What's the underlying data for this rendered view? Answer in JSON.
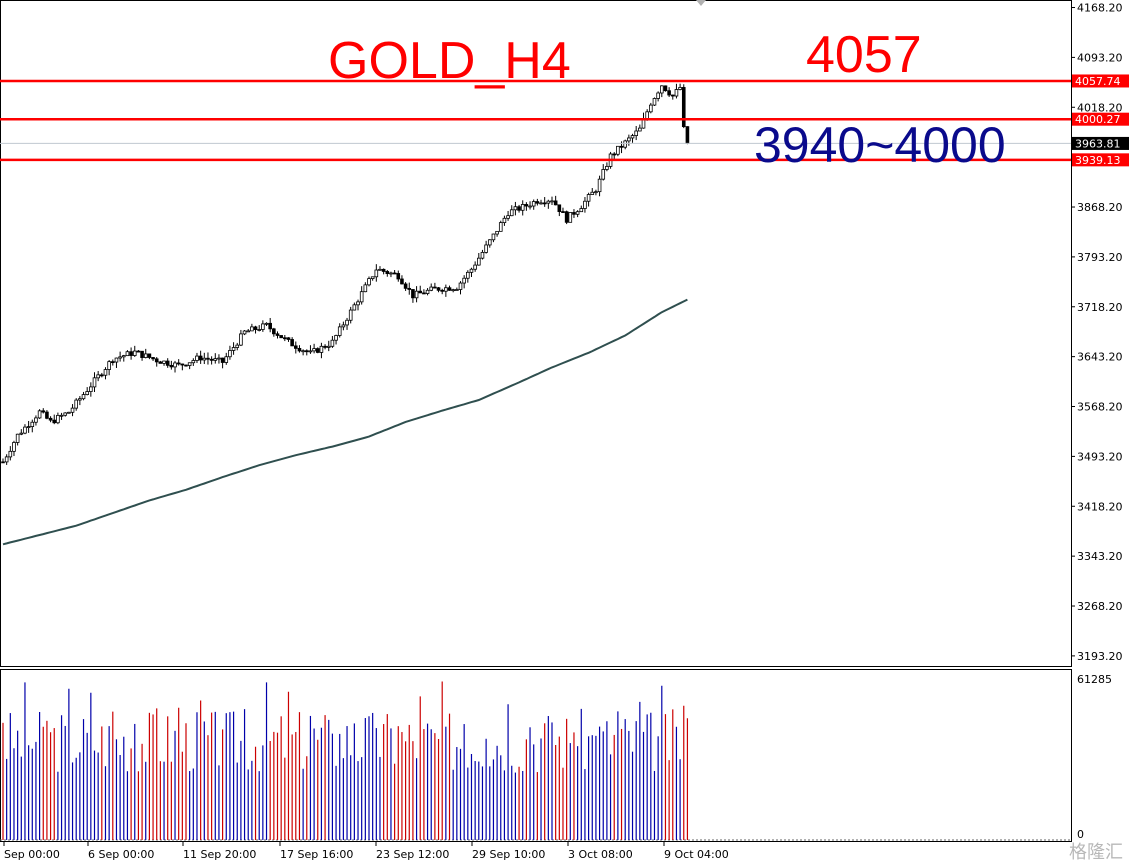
{
  "chart_data": {
    "type": "candlestick",
    "title": "GOLD_H4",
    "annotations": [
      "4057",
      "3940~4000"
    ],
    "price_axis": {
      "ticks": [
        4168.2,
        4093.2,
        4018.2,
        3868.2,
        3793.2,
        3718.2,
        3643.2,
        3568.2,
        3493.2,
        3418.2,
        3343.2,
        3268.2,
        3193.2
      ],
      "tick_labels": [
        "4168.20",
        "4093.20",
        "4018.20",
        "3868.20",
        "3793.20",
        "3718.20",
        "3643.20",
        "3568.20",
        "3493.20",
        "3418.20",
        "3343.20",
        "3268.20",
        "3193.20"
      ],
      "range": [
        3178,
        4178
      ]
    },
    "time_axis": {
      "labels": [
        "Sep 00:00",
        "6 Sep 00:00",
        "11 Sep 20:00",
        "17 Sep 16:00",
        "23 Sep 12:00",
        "29 Sep 10:00",
        "3 Oct 08:00",
        "9 Oct 04:00"
      ]
    },
    "horizontal_lines": [
      {
        "value": 4057.74,
        "label": "4057.74",
        "color": "#ff0000"
      },
      {
        "value": 4000.27,
        "label": "4000.27",
        "color": "#ff0000"
      },
      {
        "value": 3939.13,
        "label": "3939.13",
        "color": "#ff0000"
      }
    ],
    "current_price": {
      "value": 3963.81,
      "label": "3963.81"
    },
    "moving_average": {
      "color": "#2f4f4f",
      "points": [
        {
          "i": 0,
          "v": 3361
        },
        {
          "i": 10,
          "v": 3375
        },
        {
          "i": 20,
          "v": 3389
        },
        {
          "i": 30,
          "v": 3408
        },
        {
          "i": 40,
          "v": 3427
        },
        {
          "i": 50,
          "v": 3443
        },
        {
          "i": 60,
          "v": 3462
        },
        {
          "i": 70,
          "v": 3480
        },
        {
          "i": 80,
          "v": 3495
        },
        {
          "i": 90,
          "v": 3508
        },
        {
          "i": 100,
          "v": 3523
        },
        {
          "i": 110,
          "v": 3545
        },
        {
          "i": 120,
          "v": 3562
        },
        {
          "i": 130,
          "v": 3578
        },
        {
          "i": 140,
          "v": 3602
        },
        {
          "i": 150,
          "v": 3627
        },
        {
          "i": 160,
          "v": 3649
        },
        {
          "i": 170,
          "v": 3675
        },
        {
          "i": 180,
          "v": 3710
        },
        {
          "i": 187,
          "v": 3729
        }
      ]
    },
    "close_path": [
      {
        "i": 0,
        "v": 3485
      },
      {
        "i": 4,
        "v": 3525
      },
      {
        "i": 10,
        "v": 3560
      },
      {
        "i": 13,
        "v": 3545
      },
      {
        "i": 18,
        "v": 3560
      },
      {
        "i": 24,
        "v": 3600
      },
      {
        "i": 30,
        "v": 3640
      },
      {
        "i": 36,
        "v": 3650
      },
      {
        "i": 42,
        "v": 3638
      },
      {
        "i": 48,
        "v": 3630
      },
      {
        "i": 54,
        "v": 3642
      },
      {
        "i": 60,
        "v": 3635
      },
      {
        "i": 66,
        "v": 3680
      },
      {
        "i": 72,
        "v": 3690
      },
      {
        "i": 78,
        "v": 3665
      },
      {
        "i": 84,
        "v": 3648
      },
      {
        "i": 90,
        "v": 3665
      },
      {
        "i": 96,
        "v": 3720
      },
      {
        "i": 102,
        "v": 3775
      },
      {
        "i": 108,
        "v": 3765
      },
      {
        "i": 112,
        "v": 3735
      },
      {
        "i": 118,
        "v": 3745
      },
      {
        "i": 124,
        "v": 3748
      },
      {
        "i": 128,
        "v": 3775
      },
      {
        "i": 134,
        "v": 3825
      },
      {
        "i": 138,
        "v": 3860
      },
      {
        "i": 142,
        "v": 3868
      },
      {
        "i": 146,
        "v": 3878
      },
      {
        "i": 150,
        "v": 3880
      },
      {
        "i": 154,
        "v": 3850
      },
      {
        "i": 158,
        "v": 3870
      },
      {
        "i": 162,
        "v": 3895
      },
      {
        "i": 166,
        "v": 3945
      },
      {
        "i": 170,
        "v": 3965
      },
      {
        "i": 174,
        "v": 3985
      },
      {
        "i": 177,
        "v": 4025
      },
      {
        "i": 180,
        "v": 4052
      },
      {
        "i": 183,
        "v": 4035
      },
      {
        "i": 185,
        "v": 4048
      },
      {
        "i": 186,
        "v": 3985
      },
      {
        "i": 187,
        "v": 3964
      }
    ],
    "volume": {
      "max_label": "61285",
      "zero_label": "0",
      "max": 61285,
      "up_color": "#0000aa",
      "down_color": "#cc0000"
    },
    "watermark": "格隆汇"
  }
}
